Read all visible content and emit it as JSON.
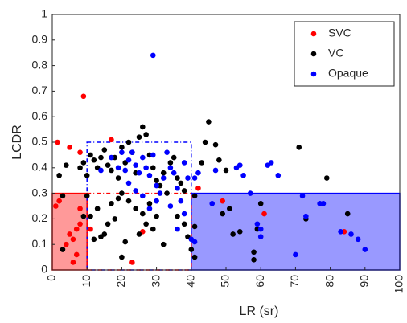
{
  "chart_data": {
    "type": "scatter",
    "xlabel": "LR (sr)",
    "ylabel": "LCDR",
    "xlim": [
      0,
      100
    ],
    "ylim": [
      0,
      1
    ],
    "xticks": [
      0,
      10,
      20,
      30,
      40,
      50,
      60,
      70,
      80,
      90,
      100
    ],
    "yticks": [
      0,
      0.1,
      0.2,
      0.3,
      0.4,
      0.5,
      0.6,
      0.7,
      0.8,
      0.9,
      1
    ],
    "legend": "top-right",
    "regions": [
      {
        "xlim": [
          0,
          10
        ],
        "ylim": [
          0,
          0.3
        ],
        "color": "#ff0000",
        "style": "fill"
      },
      {
        "xlim": [
          40,
          100
        ],
        "ylim": [
          0,
          0.3
        ],
        "color": "#0000ff",
        "style": "fill"
      },
      {
        "xlim": [
          10,
          40
        ],
        "ylim": [
          0,
          0.5
        ],
        "color": "#0000ff",
        "style": "dashed"
      },
      {
        "xlim": [
          10,
          40
        ],
        "ylim": [
          0,
          0.3
        ],
        "color": "#ff0000",
        "style": "dashed"
      }
    ],
    "series": [
      {
        "name": "SVC",
        "color": "#ff0000",
        "x": [
          1.5,
          5,
          8,
          9,
          2,
          1,
          8,
          7,
          5,
          6,
          8,
          4,
          7,
          6,
          17,
          23,
          26,
          42,
          49,
          61,
          84,
          11
        ],
        "y": [
          0.5,
          0.48,
          0.46,
          0.68,
          0.27,
          0.25,
          0.24,
          0.16,
          0.14,
          0.12,
          0.18,
          0.1,
          0.06,
          0.03,
          0.51,
          0.03,
          0.15,
          0.32,
          0.27,
          0.22,
          0.15,
          0.16
        ]
      },
      {
        "name": "VC",
        "color": "#000000",
        "x": [
          2,
          3,
          4,
          3,
          8,
          9,
          10,
          10,
          11,
          12,
          13,
          14,
          15,
          16,
          17,
          18,
          19,
          20,
          21,
          22,
          23,
          24,
          25,
          26,
          27,
          28,
          29,
          30,
          31,
          32,
          33,
          34,
          35,
          36,
          37,
          38,
          20,
          22,
          24,
          26,
          28,
          18,
          16,
          14,
          15,
          12,
          11,
          13,
          17,
          19,
          21,
          20,
          29,
          30,
          27,
          25,
          36,
          38,
          32,
          39,
          40,
          41,
          41,
          44,
          45,
          43,
          47,
          48,
          50,
          51,
          52,
          54,
          58,
          58,
          59,
          60,
          71,
          73,
          79,
          85,
          49,
          41,
          9
        ],
        "y": [
          0.37,
          0.29,
          0.41,
          0.08,
          0.4,
          0.42,
          0.37,
          0.29,
          0.45,
          0.43,
          0.4,
          0.44,
          0.47,
          0.41,
          0.39,
          0.44,
          0.36,
          0.48,
          0.42,
          0.5,
          0.46,
          0.38,
          0.52,
          0.56,
          0.53,
          0.45,
          0.4,
          0.35,
          0.33,
          0.38,
          0.3,
          0.42,
          0.44,
          0.36,
          0.34,
          0.31,
          0.3,
          0.27,
          0.24,
          0.22,
          0.26,
          0.2,
          0.18,
          0.13,
          0.14,
          0.12,
          0.21,
          0.24,
          0.26,
          0.28,
          0.11,
          0.05,
          0.16,
          0.21,
          0.18,
          0.14,
          0.21,
          0.18,
          0.1,
          0.13,
          0.08,
          0.05,
          0.17,
          0.5,
          0.58,
          0.42,
          0.49,
          0.43,
          0.39,
          0.24,
          0.14,
          0.15,
          0.07,
          0.04,
          0.16,
          0.26,
          0.48,
          0.2,
          0.36,
          0.22,
          0.22,
          0.29,
          0.21
        ]
      },
      {
        "name": "Opaque",
        "color": "#0000ff",
        "x": [
          29,
          14,
          17,
          19,
          20,
          21,
          22,
          23,
          24,
          25,
          26,
          27,
          28,
          29,
          30,
          31,
          32,
          33,
          34,
          35,
          36,
          37,
          38,
          39,
          22,
          24,
          26,
          28,
          30,
          34,
          36,
          38,
          40,
          41,
          41,
          42,
          46,
          47,
          53,
          54,
          55,
          57,
          59,
          60,
          62,
          63,
          65,
          70,
          72,
          73,
          77,
          78,
          83,
          86,
          88,
          90,
          60
        ],
        "y": [
          0.84,
          0.39,
          0.44,
          0.4,
          0.46,
          0.39,
          0.43,
          0.46,
          0.41,
          0.38,
          0.44,
          0.4,
          0.37,
          0.45,
          0.33,
          0.3,
          0.36,
          0.46,
          0.4,
          0.38,
          0.32,
          0.27,
          0.42,
          0.36,
          0.34,
          0.31,
          0.29,
          0.24,
          0.27,
          0.25,
          0.16,
          0.22,
          0.12,
          0.11,
          0.36,
          0.38,
          0.26,
          0.39,
          0.4,
          0.41,
          0.37,
          0.3,
          0.18,
          0.16,
          0.41,
          0.42,
          0.37,
          0.06,
          0.29,
          0.21,
          0.26,
          0.26,
          0.15,
          0.14,
          0.12,
          0.08,
          0.13
        ]
      }
    ]
  }
}
